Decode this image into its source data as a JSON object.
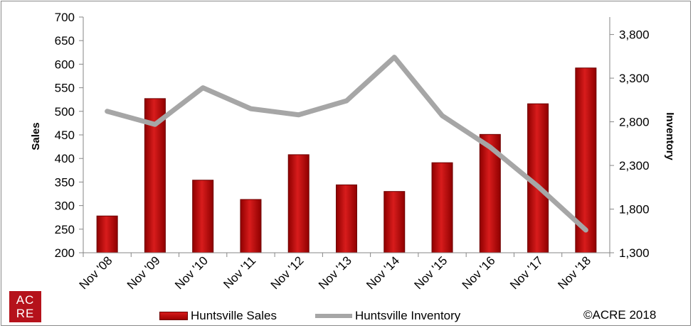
{
  "chart_data": {
    "type": "bar+line",
    "categories": [
      "Nov '08",
      "Nov '09",
      "Nov '10",
      "Nov '11",
      "Nov '12",
      "Nov '13",
      "Nov '14",
      "Nov '15",
      "Nov '16",
      "Nov '17",
      "Nov '18"
    ],
    "series": [
      {
        "name": "Huntsville Sales",
        "type": "bar",
        "axis": "left",
        "color": "#c00000",
        "values": [
          278,
          527,
          354,
          313,
          408,
          344,
          330,
          391,
          451,
          516,
          592
        ]
      },
      {
        "name": "Huntsville Inventory",
        "type": "line",
        "axis": "right",
        "color": "#a6a6a6",
        "values": [
          2920,
          2770,
          3190,
          2950,
          2880,
          3040,
          3540,
          2870,
          2510,
          2060,
          1560
        ]
      }
    ],
    "ylabel": "Sales",
    "y2label": "Inventory",
    "ylim": [
      200,
      700
    ],
    "yticks": [
      "200",
      "250",
      "300",
      "350",
      "400",
      "450",
      "500",
      "550",
      "600",
      "650",
      "700"
    ],
    "y2lim": [
      1300,
      4000
    ],
    "y2ticks": [
      "1,300",
      "1,800",
      "2,300",
      "2,800",
      "3,300",
      "3,800"
    ],
    "legend_position": "bottom"
  },
  "legend": {
    "sales_label": "Huntsville Sales",
    "inventory_label": "Huntsville Inventory"
  },
  "copyright": "©ACRE 2018",
  "logo": {
    "text_top": "AC",
    "text_bottom": "RE"
  }
}
